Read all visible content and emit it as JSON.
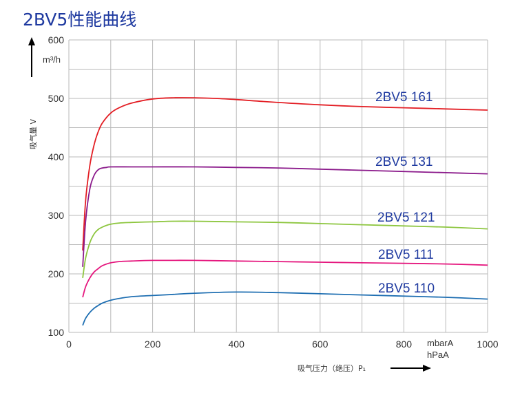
{
  "chart_data": {
    "type": "line",
    "title": "2BV5性能曲线",
    "xlabel": "吸气压力（绝压）P₁",
    "ylabel": "吸气量 V",
    "x_units": [
      "mbarA",
      "hPaA"
    ],
    "y_unit": "m³/h",
    "xlim": [
      0,
      1000
    ],
    "ylim": [
      100,
      600
    ],
    "x_ticks": [
      0,
      200,
      400,
      600,
      800,
      1000
    ],
    "y_ticks": [
      100,
      200,
      300,
      400,
      500,
      600
    ],
    "grid": true,
    "series": [
      {
        "name": "2BV5 161",
        "color": "#e31e24",
        "x": [
          33,
          40,
          50,
          60,
          70,
          80,
          100,
          120,
          150,
          200,
          250,
          300,
          350,
          400,
          500,
          600,
          700,
          800,
          900,
          1000
        ],
        "y": [
          240,
          325,
          385,
          420,
          443,
          458,
          475,
          484,
          492,
          499,
          501,
          501,
          500,
          498,
          493,
          489,
          486,
          484,
          482,
          480
        ]
      },
      {
        "name": "2BV5 131",
        "color": "#8b1a8b",
        "x": [
          33,
          40,
          50,
          60,
          70,
          80,
          90,
          100,
          150,
          200,
          300,
          400,
          500,
          600,
          700,
          800,
          900,
          1000
        ],
        "y": [
          212,
          290,
          345,
          368,
          378,
          381,
          382,
          383,
          383,
          383,
          383,
          382,
          381,
          379,
          377,
          375,
          373,
          371
        ]
      },
      {
        "name": "2BV5 121",
        "color": "#8dc63f",
        "x": [
          33,
          40,
          50,
          60,
          70,
          80,
          90,
          100,
          120,
          150,
          200,
          250,
          300,
          400,
          500,
          600,
          700,
          800,
          900,
          1000
        ],
        "y": [
          193,
          227,
          253,
          268,
          276,
          280,
          283,
          285,
          287,
          288,
          289,
          290,
          290,
          289,
          288,
          286,
          284,
          282,
          280,
          277
        ]
      },
      {
        "name": "2BV5 111",
        "color": "#e5177e",
        "x": [
          33,
          40,
          50,
          60,
          70,
          80,
          100,
          120,
          150,
          200,
          300,
          400,
          500,
          600,
          700,
          800,
          900,
          1000
        ],
        "y": [
          160,
          178,
          193,
          203,
          209,
          214,
          219,
          221,
          222,
          223,
          223,
          222,
          221,
          220,
          219,
          218,
          217,
          215
        ]
      },
      {
        "name": "2BV5 110",
        "color": "#1f6fb2",
        "x": [
          33,
          40,
          50,
          60,
          70,
          80,
          100,
          120,
          150,
          200,
          250,
          300,
          400,
          500,
          600,
          700,
          800,
          900,
          1000
        ],
        "y": [
          112,
          124,
          134,
          141,
          146,
          150,
          155,
          158,
          161,
          163,
          165,
          167,
          169,
          168,
          166,
          164,
          162,
          160,
          157
        ]
      }
    ]
  }
}
